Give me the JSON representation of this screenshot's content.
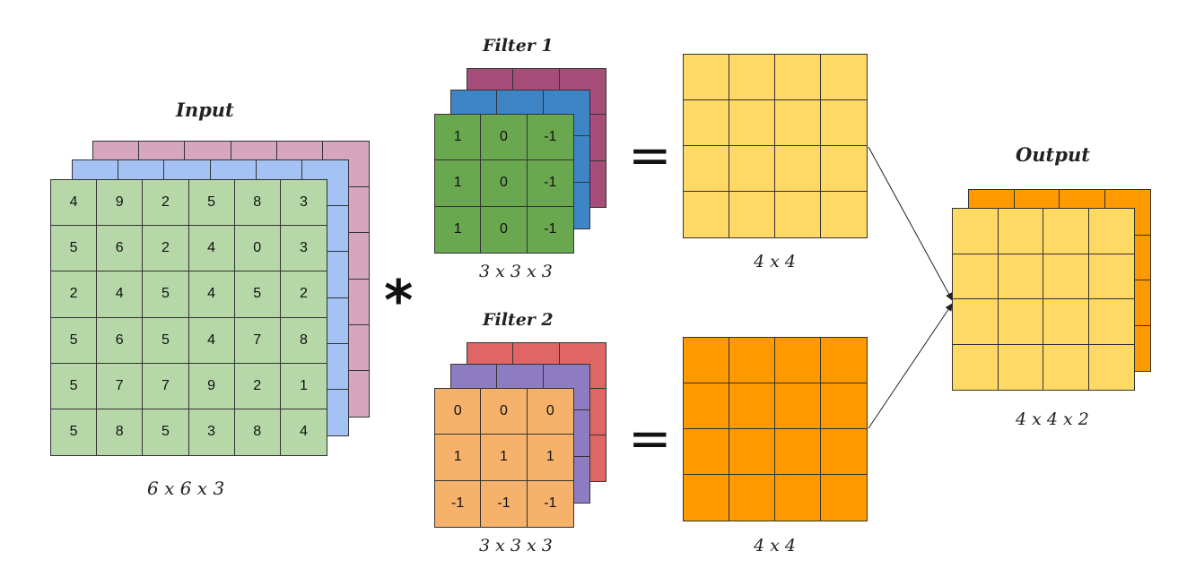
{
  "input": {
    "title": "Input",
    "caption": "6 x 6 x 3",
    "layers": [
      {
        "name": "back",
        "color": "#d5a6bd",
        "values": []
      },
      {
        "name": "middle",
        "color": "#a4c2f4",
        "values": []
      },
      {
        "name": "front",
        "color": "#b6d7a8",
        "values": [
          [
            "4",
            "9",
            "2",
            "5",
            "8",
            "3"
          ],
          [
            "5",
            "6",
            "2",
            "4",
            "0",
            "3"
          ],
          [
            "2",
            "4",
            "5",
            "4",
            "5",
            "2"
          ],
          [
            "5",
            "6",
            "5",
            "4",
            "7",
            "8"
          ],
          [
            "5",
            "7",
            "7",
            "9",
            "2",
            "1"
          ],
          [
            "5",
            "8",
            "5",
            "3",
            "8",
            "4"
          ]
        ]
      }
    ]
  },
  "operator": "*",
  "filter1": {
    "title": "Filter 1",
    "caption": "3 x 3 x 3",
    "layers": [
      {
        "name": "back",
        "color": "#a64d79",
        "values": []
      },
      {
        "name": "middle",
        "color": "#3d85c6",
        "values": []
      },
      {
        "name": "front",
        "color": "#6aa84f",
        "values": [
          [
            "1",
            "0",
            "-1"
          ],
          [
            "1",
            "0",
            "-1"
          ],
          [
            "1",
            "0",
            "-1"
          ]
        ]
      }
    ]
  },
  "filter2": {
    "title": "Filter 2",
    "caption": "3 x 3 x 3",
    "layers": [
      {
        "name": "back",
        "color": "#e06666",
        "values": []
      },
      {
        "name": "middle",
        "color": "#8e7cc3",
        "values": []
      },
      {
        "name": "front",
        "color": "#f6b26b",
        "values": [
          [
            "0",
            "0",
            "0"
          ],
          [
            "1",
            "1",
            "1"
          ],
          [
            "-1",
            "-1",
            "-1"
          ]
        ]
      }
    ]
  },
  "equals": "=",
  "result1": {
    "caption": "4 x 4",
    "color": "#ffd966"
  },
  "result2": {
    "caption": "4 x 4",
    "color": "#ff9900"
  },
  "output": {
    "title": "Output",
    "caption": "4 x 4 x 2",
    "back_color": "#ff9900",
    "front_color": "#ffd966"
  }
}
